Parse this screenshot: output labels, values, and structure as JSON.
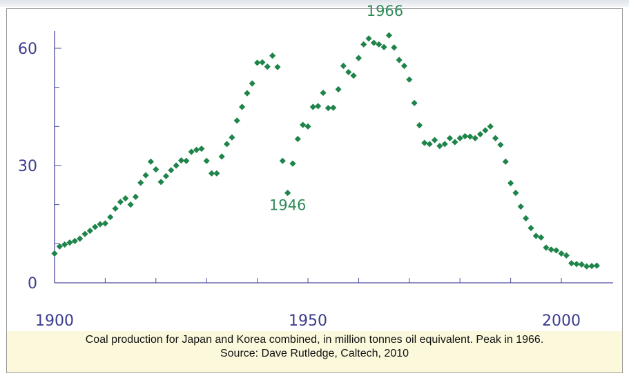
{
  "caption": {
    "line1": "Coal production for Japan and Korea combined, in million tonnes oil equivalent. Peak in 1966.",
    "line2": "Source: Dave Rutledge, Caltech, 2010"
  },
  "chart_data": {
    "type": "scatter",
    "color": "#1e8449",
    "xlim": [
      1900,
      2010
    ],
    "ylim": [
      0,
      60
    ],
    "x_ticks": [
      1900,
      1950,
      2000
    ],
    "y_ticks": [
      0,
      30,
      60
    ],
    "grid": false,
    "annotations": [
      {
        "text": "1966",
        "x": 1966,
        "y": 63.5
      },
      {
        "text": "1946",
        "x": 1946,
        "y": 23
      }
    ],
    "x": [
      1900,
      1901,
      1902,
      1903,
      1904,
      1905,
      1906,
      1907,
      1908,
      1909,
      1910,
      1911,
      1912,
      1913,
      1914,
      1915,
      1916,
      1917,
      1918,
      1919,
      1920,
      1921,
      1922,
      1923,
      1924,
      1925,
      1926,
      1927,
      1928,
      1929,
      1930,
      1931,
      1932,
      1933,
      1934,
      1935,
      1936,
      1937,
      1938,
      1939,
      1940,
      1941,
      1942,
      1943,
      1944,
      1945,
      1946,
      1947,
      1948,
      1949,
      1950,
      1951,
      1952,
      1953,
      1954,
      1955,
      1956,
      1957,
      1958,
      1959,
      1960,
      1961,
      1962,
      1963,
      1964,
      1965,
      1966,
      1967,
      1968,
      1969,
      1970,
      1971,
      1972,
      1973,
      1974,
      1975,
      1976,
      1977,
      1978,
      1979,
      1980,
      1981,
      1982,
      1983,
      1984,
      1985,
      1986,
      1987,
      1988,
      1989,
      1990,
      1991,
      1992,
      1993,
      1994,
      1995,
      1996,
      1997,
      1998,
      1999,
      2000,
      2001,
      2002,
      2003,
      2004,
      2005,
      2006,
      2007
    ],
    "y": [
      7.5,
      9.3,
      9.8,
      10.3,
      10.7,
      11.3,
      12.5,
      13.3,
      14.3,
      15,
      15.2,
      16.8,
      19,
      20.7,
      21.6,
      20,
      22,
      25.6,
      27.5,
      31,
      29,
      25.8,
      27.3,
      28.8,
      30,
      31.3,
      31.2,
      33.5,
      34,
      34.3,
      31.2,
      28,
      28,
      32.3,
      35.5,
      37.2,
      41.5,
      45,
      48.5,
      51,
      56.3,
      56.4,
      55.3,
      58.1,
      55.2,
      31.2,
      23,
      30.5,
      36.8,
      40.4,
      40,
      45,
      45.2,
      48.6,
      44.7,
      44.8,
      49.5,
      55.5,
      53.9,
      53,
      57.5,
      61,
      62.5,
      61.4,
      61,
      60.3,
      63.3,
      60.2,
      57,
      55.5,
      52,
      46,
      40.3,
      35.8,
      35.5,
      36.5,
      35,
      35.5,
      37,
      36,
      37,
      37.5,
      37.4,
      37,
      38,
      39,
      40,
      37,
      35.3,
      31,
      25.5,
      23,
      19.5,
      16.5,
      14,
      12,
      11.6,
      9,
      8.5,
      8.3,
      7.5,
      7,
      5,
      4.8,
      4.7,
      4.2,
      4.3,
      4.4
    ]
  }
}
